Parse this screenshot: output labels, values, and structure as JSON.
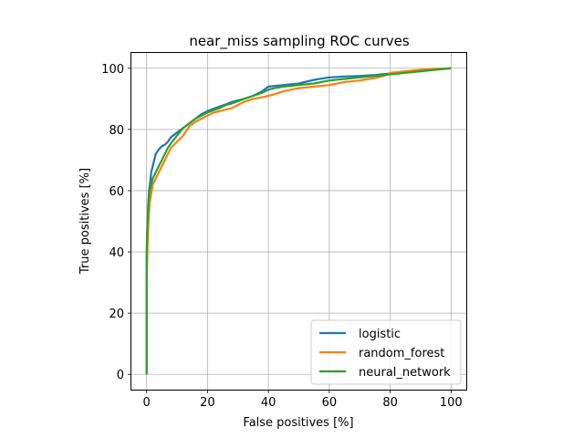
{
  "chart_data": {
    "type": "line",
    "title": "near_miss sampling ROC curves",
    "xlabel": "False positives [%]",
    "ylabel": "True positives [%]",
    "xlim": [
      -5,
      105
    ],
    "ylim": [
      -5,
      105
    ],
    "xticks": [
      0,
      20,
      40,
      60,
      80,
      100
    ],
    "yticks": [
      0,
      20,
      40,
      60,
      80,
      100
    ],
    "grid": true,
    "legend_position": "lower-right",
    "series": [
      {
        "name": "logistic",
        "color": "#1f77b4",
        "x": [
          0,
          0,
          0.2,
          0.5,
          0.8,
          1.2,
          1.5,
          2,
          2.5,
          3,
          4,
          5,
          6,
          7,
          8,
          10,
          12,
          14,
          16,
          18,
          20,
          22,
          24,
          26,
          28,
          30,
          32,
          35,
          38,
          40,
          42,
          45,
          50,
          55,
          60,
          65,
          70,
          75,
          80,
          85,
          90,
          95,
          100
        ],
        "y": [
          0,
          30,
          45,
          55,
          60,
          63,
          66,
          68,
          70,
          72,
          73.5,
          74.5,
          75,
          76,
          77.5,
          79,
          80.5,
          82,
          83.5,
          85,
          86,
          86.8,
          87.5,
          88.2,
          89,
          89.5,
          90,
          91,
          92.5,
          94,
          94.2,
          94.5,
          95,
          96.2,
          97,
          97.3,
          97.5,
          97.8,
          98.3,
          98.8,
          99.2,
          99.6,
          100
        ]
      },
      {
        "name": "random_forest",
        "color": "#ff7f0e",
        "x": [
          0,
          0,
          0.3,
          0.6,
          1,
          1.5,
          2,
          3,
          4,
          5,
          6,
          7,
          8,
          10,
          12,
          14,
          16,
          18,
          20,
          22,
          24,
          26,
          28,
          30,
          32,
          35,
          38,
          40,
          42,
          45,
          50,
          55,
          60,
          65,
          70,
          75,
          78,
          80,
          85,
          90,
          95,
          100
        ],
        "y": [
          0,
          30,
          42,
          50,
          56,
          59,
          62,
          64,
          66,
          68,
          70,
          72,
          74,
          76,
          78,
          81,
          82.5,
          83.5,
          84.5,
          85.5,
          86,
          86.5,
          87,
          88,
          89,
          90,
          90.5,
          91,
          91.5,
          92.5,
          93.5,
          94,
          94.5,
          95.5,
          96,
          96.8,
          97.5,
          98.5,
          99,
          99.5,
          99.8,
          100
        ]
      },
      {
        "name": "neural_network",
        "color": "#2ca02c",
        "x": [
          0,
          0,
          0.3,
          0.6,
          1,
          1.5,
          2,
          3,
          4,
          5,
          6,
          7,
          8,
          10,
          12,
          14,
          16,
          18,
          20,
          22,
          24,
          26,
          28,
          30,
          32,
          35,
          38,
          40,
          42,
          45,
          50,
          55,
          60,
          65,
          70,
          75,
          80,
          85,
          90,
          95,
          100
        ],
        "y": [
          0,
          40,
          50,
          56,
          60,
          62,
          64,
          66,
          68,
          70,
          72,
          74,
          75.5,
          78,
          80.5,
          82,
          83.5,
          84.5,
          85.5,
          86.3,
          87,
          88,
          88.5,
          89.2,
          90,
          91,
          92,
          93,
          93.5,
          94,
          94.5,
          95,
          96,
          96.5,
          97,
          97.5,
          98,
          98.5,
          99,
          99.5,
          100
        ]
      }
    ]
  }
}
